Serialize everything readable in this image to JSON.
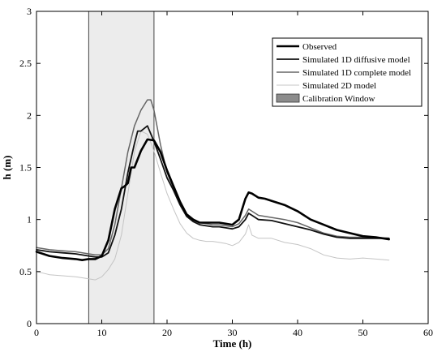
{
  "chart_data": {
    "type": "line",
    "title": "",
    "xlabel": "Time (h)",
    "ylabel": "h (m)",
    "xlim": [
      0,
      60
    ],
    "ylim": [
      0,
      3
    ],
    "xticks": [
      0,
      10,
      20,
      30,
      40,
      50,
      60
    ],
    "yticks": [
      0,
      0.5,
      1,
      1.5,
      2,
      2.5,
      3
    ],
    "xtick_labels": [
      "0",
      "10",
      "20",
      "30",
      "40",
      "50",
      "60"
    ],
    "ytick_labels": [
      "0",
      "0.5",
      "1",
      "1.5",
      "2",
      "2.5",
      "3"
    ],
    "grid": false,
    "legend_position": "top-right",
    "calibration_window": {
      "name": "Calibration Window",
      "x_start": 8,
      "x_end": 18,
      "color": "#8c8c8c"
    },
    "series": [
      {
        "name": "Observed",
        "color": "#000000",
        "x": [
          0,
          2,
          4,
          6,
          7,
          8,
          9,
          10,
          11,
          12,
          12.5,
          13,
          13.5,
          14,
          14.5,
          15,
          16,
          17,
          18,
          19,
          20,
          21,
          22,
          23,
          24,
          25,
          26,
          27,
          28,
          29,
          30,
          31,
          32,
          32.5,
          33,
          34,
          35,
          36,
          38,
          40,
          42,
          44,
          46,
          48,
          50,
          52,
          54
        ],
        "y": [
          0.69,
          0.65,
          0.63,
          0.62,
          0.61,
          0.62,
          0.62,
          0.65,
          0.8,
          1.1,
          1.2,
          1.3,
          1.32,
          1.35,
          1.5,
          1.5,
          1.66,
          1.77,
          1.76,
          1.65,
          1.47,
          1.32,
          1.17,
          1.05,
          1.0,
          0.97,
          0.97,
          0.97,
          0.97,
          0.96,
          0.95,
          1.0,
          1.2,
          1.26,
          1.25,
          1.21,
          1.2,
          1.18,
          1.14,
          1.08,
          1.0,
          0.95,
          0.9,
          0.87,
          0.84,
          0.83,
          0.81
        ]
      },
      {
        "name": "Simulated 1D diffusive model",
        "color": "#111111",
        "x": [
          0,
          2,
          4,
          6,
          8,
          9,
          10,
          11,
          12,
          13,
          14,
          15,
          15.5,
          16,
          17,
          18,
          19,
          20,
          21,
          22,
          23,
          24,
          25,
          26,
          27,
          28,
          29,
          30,
          31,
          32,
          32.5,
          33,
          34,
          36,
          38,
          40,
          42,
          44,
          46,
          48,
          50,
          52,
          54
        ],
        "y": [
          0.71,
          0.69,
          0.68,
          0.67,
          0.65,
          0.64,
          0.64,
          0.68,
          0.85,
          1.1,
          1.45,
          1.73,
          1.85,
          1.85,
          1.9,
          1.75,
          1.58,
          1.4,
          1.28,
          1.14,
          1.03,
          0.98,
          0.95,
          0.94,
          0.93,
          0.93,
          0.92,
          0.91,
          0.93,
          1.0,
          1.06,
          1.04,
          1.0,
          0.99,
          0.96,
          0.93,
          0.9,
          0.86,
          0.83,
          0.82,
          0.82,
          0.82,
          0.82
        ]
      },
      {
        "name": "Simulated 1D complete model",
        "color": "#666666",
        "x": [
          0,
          2,
          4,
          6,
          8,
          9,
          10,
          11,
          12,
          13,
          14,
          15,
          16,
          17,
          17.5,
          18,
          19,
          20,
          21,
          22,
          23,
          24,
          25,
          26,
          27,
          28,
          29,
          30,
          31,
          32,
          32.5,
          33,
          34,
          36,
          38,
          40,
          42,
          44,
          46,
          48,
          50,
          52,
          54
        ],
        "y": [
          0.73,
          0.71,
          0.7,
          0.69,
          0.67,
          0.66,
          0.66,
          0.72,
          0.95,
          1.3,
          1.65,
          1.9,
          2.05,
          2.15,
          2.15,
          2.05,
          1.72,
          1.45,
          1.3,
          1.15,
          1.05,
          1.0,
          0.97,
          0.96,
          0.95,
          0.95,
          0.94,
          0.93,
          0.96,
          1.04,
          1.1,
          1.08,
          1.04,
          1.02,
          1.0,
          0.97,
          0.92,
          0.87,
          0.84,
          0.83,
          0.83,
          0.83,
          0.82
        ]
      },
      {
        "name": "Simulated 2D model",
        "color": "#c4c4c4",
        "x": [
          0,
          2,
          4,
          6,
          8,
          9,
          10,
          11,
          12,
          13,
          14,
          15,
          16,
          17,
          18,
          19,
          20,
          21,
          22,
          23,
          24,
          25,
          26,
          27,
          28,
          29,
          30,
          31,
          32,
          32.5,
          33,
          34,
          36,
          38,
          40,
          42,
          44,
          46,
          48,
          50,
          52,
          54
        ],
        "y": [
          0.5,
          0.47,
          0.46,
          0.45,
          0.43,
          0.42,
          0.45,
          0.52,
          0.62,
          0.85,
          1.25,
          1.65,
          1.85,
          1.82,
          1.66,
          1.45,
          1.25,
          1.1,
          0.96,
          0.87,
          0.82,
          0.8,
          0.79,
          0.79,
          0.78,
          0.77,
          0.75,
          0.78,
          0.86,
          0.95,
          0.85,
          0.82,
          0.82,
          0.78,
          0.76,
          0.72,
          0.66,
          0.63,
          0.62,
          0.63,
          0.62,
          0.61
        ]
      }
    ]
  }
}
